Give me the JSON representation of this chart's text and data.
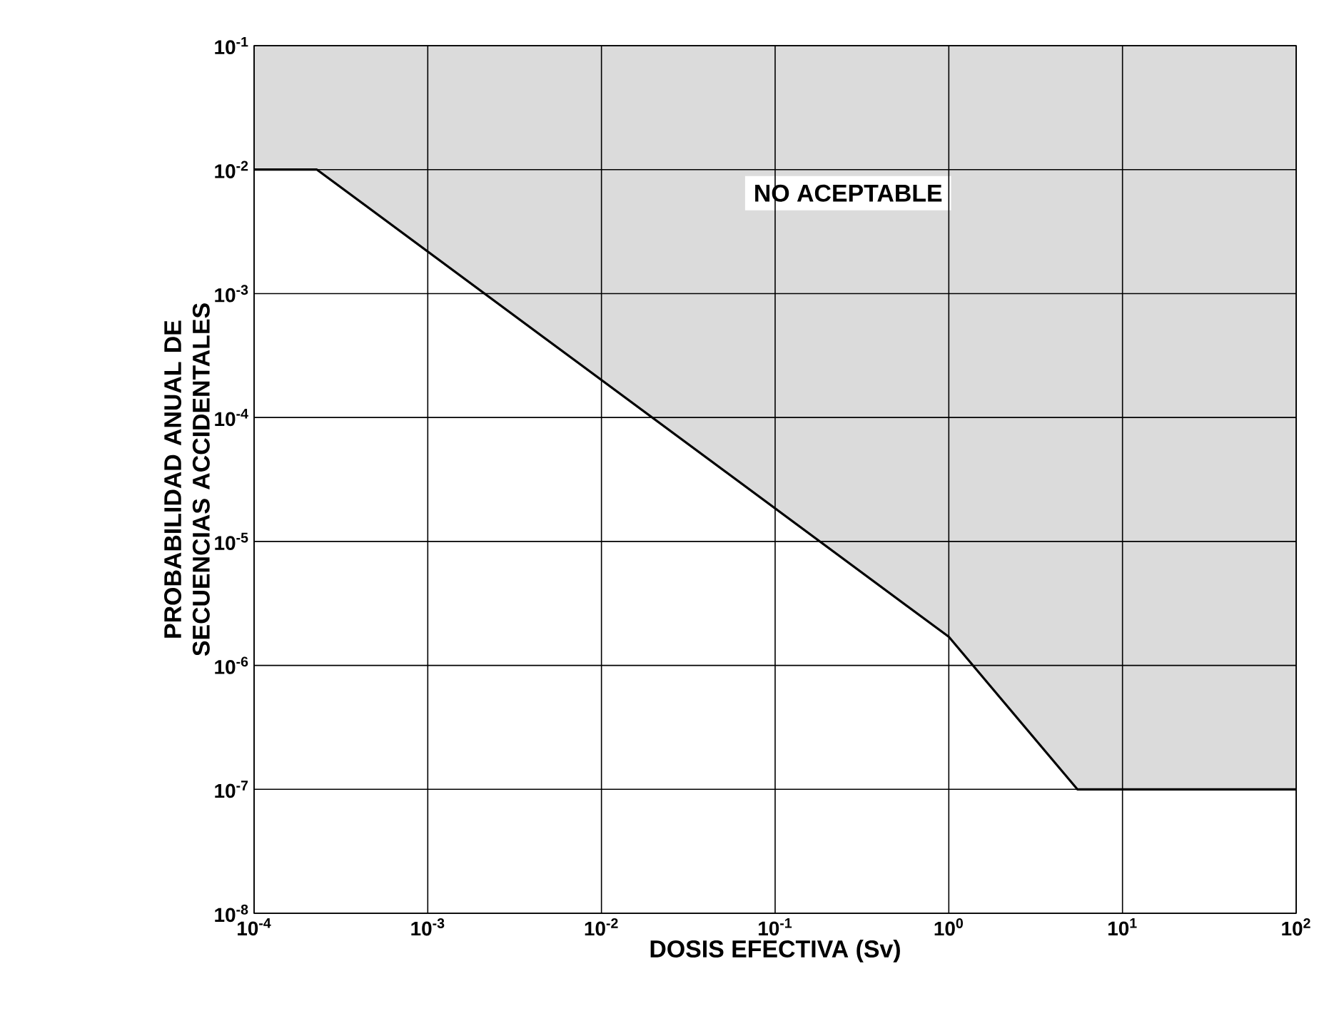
{
  "chart_data": {
    "type": "line",
    "xlabel": "DOSIS EFECTIVA (Sv)",
    "ylabel": "PROBABILIDAD ANUAL DE SECUENCIAS ACCIDENTALES",
    "log": "xy",
    "grid": true,
    "marker": "none",
    "line_style": "solid",
    "x": [
      0.0001,
      0.00023,
      1,
      5.5,
      100
    ],
    "series": [
      {
        "color": "#000000",
        "values": [
          0.01,
          0.01,
          1.7e-06,
          1e-07,
          1e-07
        ],
        "lower": [
          0.01,
          0.01,
          1.7e-06,
          1e-07,
          1e-07
        ],
        "upper": [
          0.1,
          0.1,
          0.1,
          0.1,
          0.1
        ]
      }
    ],
    "xlim": [
      0.0001,
      100
    ],
    "ylim": [
      1e-08,
      0.1
    ],
    "xticks": [
      {
        "value": 0.0001,
        "label": "10$^{-4}$"
      },
      {
        "value": 0.001,
        "label": "10$^{-3}$"
      },
      {
        "value": 0.01,
        "label": "10$^{-2}$"
      },
      {
        "value": 0.1,
        "label": "10$^{-1}$"
      },
      {
        "value": 1,
        "label": "10$^{0}$"
      },
      {
        "value": 10,
        "label": "10$^{1}$"
      },
      {
        "value": 100,
        "label": "10$^{2}$"
      }
    ],
    "yticks": [
      {
        "value": 1e-08,
        "label": "10$^{-8}$"
      },
      {
        "value": 1e-07,
        "label": "10$^{-7}$"
      },
      {
        "value": 1e-06,
        "label": "10$^{-6}$"
      },
      {
        "value": 1e-05,
        "label": "10$^{-5}$"
      },
      {
        "value": 0.0001,
        "label": "10$^{-4}$"
      },
      {
        "value": 0.001,
        "label": "10$^{-3}$"
      },
      {
        "value": 0.01,
        "label": "10$^{-2}$"
      },
      {
        "value": 0.1,
        "label": "10$^{-1}$"
      }
    ],
    "annotations": [
      "NO ACEPTABLE"
    ]
  }
}
